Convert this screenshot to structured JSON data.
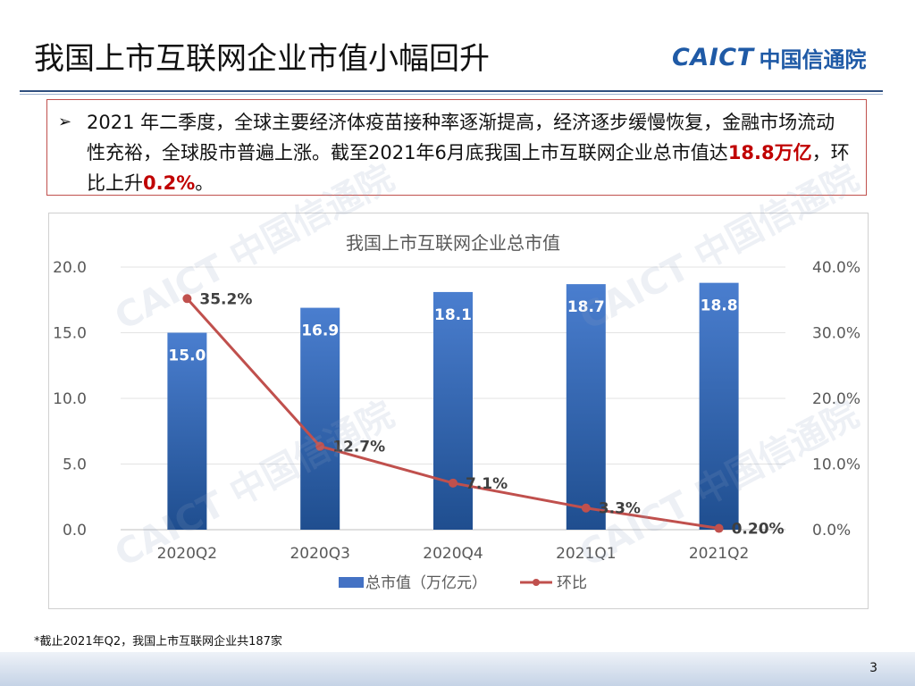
{
  "title": "我国上市互联网企业市值小幅回升",
  "logo": {
    "latin": "CAICT",
    "cn": "中国信通院"
  },
  "callout": {
    "bullet": "➢",
    "part1": "2021 年二季度，全球主要经济体疫苗接种率逐渐提高，经济逐步缓慢恢复，金融市场流动性充裕，全球股市普遍上涨。截至2021年6月底我国上市互联网企业总市值达",
    "highlight1": "18.8万亿",
    "part2": "，环比上升",
    "highlight2": "0.2%",
    "part3": "。"
  },
  "watermark_text": "CAICT 中国信通院",
  "chart_data": {
    "type": "bar",
    "title": "我国上市互联网企业总市值",
    "categories": [
      "2020Q2",
      "2020Q3",
      "2020Q4",
      "2021Q1",
      "2021Q2"
    ],
    "series": [
      {
        "name": "总市值（万亿元）",
        "type": "bar",
        "axis": "left",
        "values": [
          15.0,
          16.9,
          18.1,
          18.7,
          18.8
        ],
        "labels": [
          "15.0",
          "16.9",
          "18.1",
          "18.7",
          "18.8"
        ],
        "color": "#4472c4"
      },
      {
        "name": "环比",
        "type": "line",
        "axis": "right",
        "values": [
          35.2,
          12.7,
          7.1,
          3.3,
          0.2
        ],
        "labels": [
          "35.2%",
          "12.7%",
          "7.1%",
          "3.3%",
          "0.20%"
        ],
        "color": "#c0504d"
      }
    ],
    "ylim": [
      0,
      20
    ],
    "yticks": [
      "0.0",
      "5.0",
      "10.0",
      "15.0",
      "20.0"
    ],
    "y2lim": [
      0,
      40
    ],
    "y2ticks": [
      "0.0%",
      "10.0%",
      "20.0%",
      "30.0%",
      "40.0%"
    ],
    "grid": true,
    "legend": "bottom"
  },
  "footnote": "*截止2021年Q2，我国上市互联网企业共187家",
  "page_number": "3"
}
